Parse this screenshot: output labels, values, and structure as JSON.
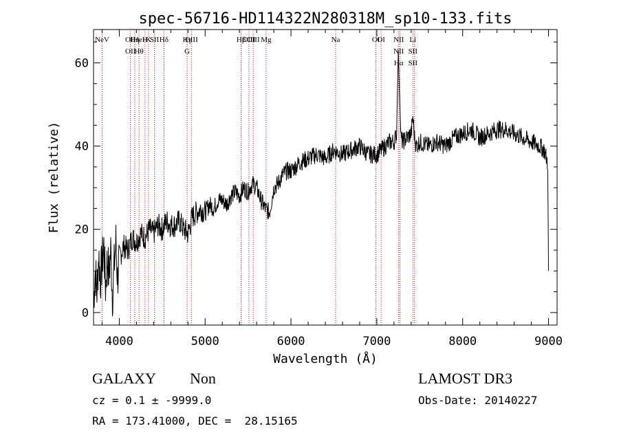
{
  "chart_data": {
    "type": "line",
    "title": "spec-56716-HD114322N280318M_sp10-133.fits",
    "xlabel": "Wavelength (Å)",
    "ylabel": "Flux (relative)",
    "xlim": [
      3700,
      9100
    ],
    "ylim": [
      -3,
      68
    ],
    "xticks": [
      4000,
      5000,
      6000,
      7000,
      8000,
      9000
    ],
    "yticks": [
      0,
      20,
      40,
      60
    ],
    "grid": false,
    "series": [
      {
        "x": [
          3700,
          3720,
          3740,
          3760,
          3780,
          3800,
          3820,
          3840,
          3860,
          3880,
          3900,
          3920,
          3940,
          3960,
          3980,
          4000,
          4050,
          4100,
          4150,
          4200,
          4250,
          4300,
          4350,
          4400,
          4450,
          4500,
          4550,
          4600,
          4650,
          4700,
          4750,
          4800,
          4850,
          4900,
          4950,
          5000,
          5050,
          5100,
          5150,
          5200,
          5250,
          5300,
          5350,
          5400,
          5450,
          5500,
          5550,
          5600,
          5650,
          5700,
          5750,
          5800,
          5850,
          5900,
          5950,
          6000,
          6100,
          6200,
          6300,
          6400,
          6500,
          6600,
          6700,
          6800,
          6900,
          7000,
          7100,
          7150,
          7200,
          7230,
          7250,
          7265,
          7280,
          7300,
          7350,
          7400,
          7420,
          7440,
          7460,
          7500,
          7600,
          7700,
          7800,
          7900,
          8000,
          8100,
          8200,
          8300,
          8400,
          8500,
          8600,
          8700,
          8800,
          8900,
          8950,
          8990,
          9000
        ],
        "y": [
          3,
          10,
          5,
          14,
          8,
          12,
          16,
          6,
          13,
          9,
          15,
          4,
          11,
          17,
          8,
          13,
          16,
          15,
          18,
          17,
          19,
          18,
          20,
          19,
          21,
          20,
          22,
          21,
          21,
          22,
          20,
          19,
          23,
          24,
          25,
          24,
          26,
          25,
          27,
          27,
          26,
          28,
          29,
          28,
          30,
          29,
          31,
          30,
          27,
          25,
          24,
          30,
          31,
          33,
          34,
          34,
          36,
          37,
          38,
          37,
          39,
          38,
          39,
          40,
          38,
          38,
          40,
          41,
          41,
          43,
          63,
          52,
          42,
          41,
          42,
          43,
          47,
          42,
          40,
          41,
          40,
          41,
          40,
          42,
          43,
          44,
          42,
          43,
          44,
          44,
          43,
          42,
          41,
          40,
          39,
          36,
          10
        ]
      }
    ],
    "lines": [
      {
        "x": 3800,
        "labels": [
          "NeV"
        ]
      },
      {
        "x": 4130,
        "labels": [
          "OII",
          "OII"
        ]
      },
      {
        "x": 4180,
        "labels": [
          "Hη"
        ]
      },
      {
        "x": 4230,
        "labels": [
          "HeI",
          "Hθ"
        ]
      },
      {
        "x": 4300,
        "labels": [
          "H"
        ]
      },
      {
        "x": 4340,
        "labels": [
          "K"
        ]
      },
      {
        "x": 4410,
        "labels": [
          "SII"
        ]
      },
      {
        "x": 4520,
        "labels": [
          "Hδ"
        ]
      },
      {
        "x": 4790,
        "labels": [
          "Hγ",
          "G"
        ]
      },
      {
        "x": 4840,
        "labels": [
          "OIII"
        ]
      },
      {
        "x": 5420,
        "labels": [
          "Hβ"
        ]
      },
      {
        "x": 5510,
        "labels": [
          "OIII"
        ]
      },
      {
        "x": 5560,
        "labels": [
          "OIII"
        ]
      },
      {
        "x": 5710,
        "labels": [
          "Mg"
        ]
      },
      {
        "x": 6520,
        "labels": [
          "Na"
        ]
      },
      {
        "x": 6990,
        "labels": [
          "OI"
        ]
      },
      {
        "x": 7050,
        "labels": [
          "OI"
        ]
      },
      {
        "x": 7255,
        "labels": [
          "NII",
          "NII",
          "Hα"
        ]
      },
      {
        "x": 7270,
        "labels": []
      },
      {
        "x": 7420,
        "labels": [
          "Li",
          "SII",
          "SII"
        ]
      },
      {
        "x": 7440,
        "labels": []
      }
    ]
  },
  "info": {
    "type_label": "GALAXY",
    "subclass": "Non",
    "survey": "LAMOST DR3",
    "cz": "cz = 0.1 ± -9999.0",
    "obs_date": "Obs-Date: 20140227",
    "radec": "RA = 173.41000, DEC =  28.15165"
  }
}
